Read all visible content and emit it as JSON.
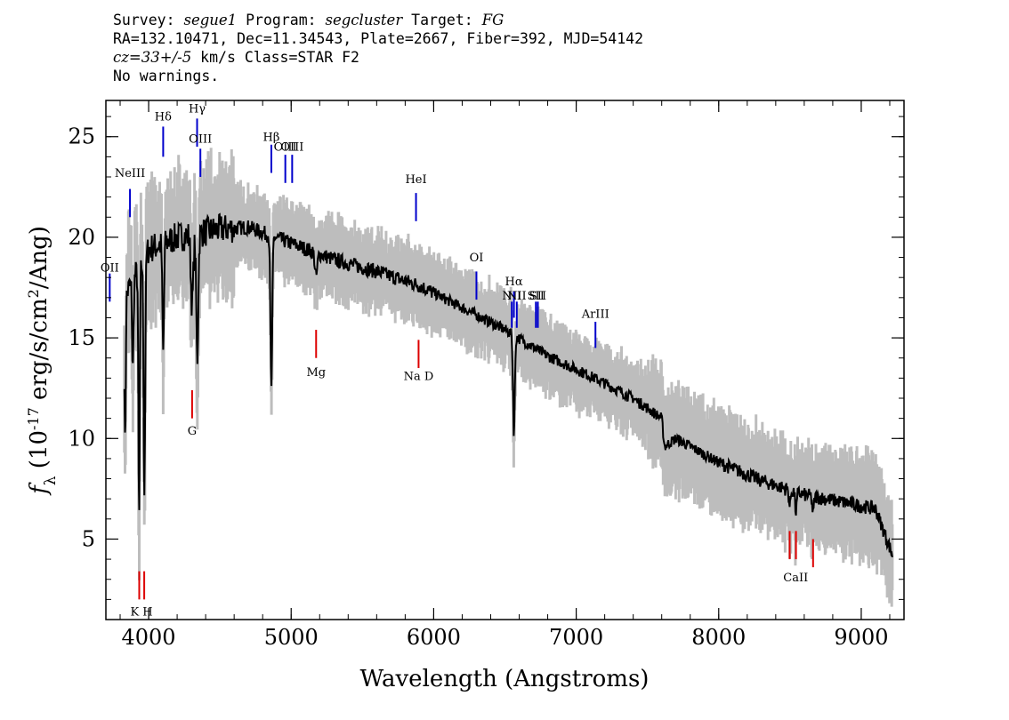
{
  "header": {
    "survey_label": "Survey: ",
    "survey": "segue1",
    "program_label": " Program: ",
    "program": "segcluster",
    "target_label": " Target: ",
    "target": "FG",
    "line2": "RA=132.10471, Dec=11.34543, Plate=2667, Fiber=392, MJD=54142",
    "cz": "cz=33+/-5",
    "line3_rest": " km/s Class=STAR F2",
    "line4": "No warnings."
  },
  "chart_data": {
    "type": "line",
    "xlabel": "Wavelength (Angstroms)",
    "ylabel": "f_λ (10^-17 erg/s/cm^2/Ang)",
    "xlim": [
      3700,
      9300
    ],
    "ylim": [
      1,
      26.8
    ],
    "x_ticks": [
      4000,
      5000,
      6000,
      7000,
      8000,
      9000
    ],
    "y_ticks": [
      5,
      10,
      15,
      20,
      25
    ],
    "colors": {
      "flux": "#000000",
      "error_band": "#bdbdbd",
      "emission": "#0000cc",
      "absorption": "#dd0000"
    },
    "continuum_knots": [
      [
        3830,
        17.0
      ],
      [
        4000,
        19.4
      ],
      [
        4200,
        20.0
      ],
      [
        4500,
        20.4
      ],
      [
        4700,
        20.5
      ],
      [
        5000,
        19.7
      ],
      [
        5300,
        18.9
      ],
      [
        5600,
        18.3
      ],
      [
        5900,
        17.6
      ],
      [
        6200,
        16.5
      ],
      [
        6500,
        15.4
      ],
      [
        6800,
        14.1
      ],
      [
        7100,
        13.1
      ],
      [
        7400,
        12.0
      ],
      [
        7600,
        11.0
      ],
      [
        7620,
        9.6
      ],
      [
        7700,
        10.0
      ],
      [
        8000,
        8.8
      ],
      [
        8300,
        7.9
      ],
      [
        8600,
        7.2
      ],
      [
        8900,
        6.8
      ],
      [
        9100,
        6.5
      ],
      [
        9220,
        4.2
      ]
    ],
    "absorption_features": [
      {
        "center": 3835,
        "depth": 7.6,
        "width": 6
      },
      {
        "center": 3889,
        "depth": 4.5,
        "width": 7
      },
      {
        "center": 3933,
        "depth": 12.5,
        "width": 7
      },
      {
        "center": 3970,
        "depth": 11.5,
        "width": 8
      },
      {
        "center": 4102,
        "depth": 5.5,
        "width": 8
      },
      {
        "center": 4305,
        "depth": 3.5,
        "width": 12
      },
      {
        "center": 4341,
        "depth": 6.2,
        "width": 10
      },
      {
        "center": 4861,
        "depth": 7.5,
        "width": 9
      },
      {
        "center": 5175,
        "depth": 1.2,
        "width": 12
      },
      {
        "center": 6563,
        "depth": 4.8,
        "width": 9
      },
      {
        "center": 8498,
        "depth": 0.8,
        "width": 8
      },
      {
        "center": 8542,
        "depth": 1.0,
        "width": 8
      },
      {
        "center": 8662,
        "depth": 0.9,
        "width": 8
      }
    ],
    "emission_lines": [
      {
        "label": "OII",
        "wave": 3727,
        "y0": 16.8,
        "y1": 18.2,
        "label_y": 18.3
      },
      {
        "label": "NeIII",
        "wave": 3869,
        "y0": 21.0,
        "y1": 22.4,
        "label_y": 23.0
      },
      {
        "label": "Hδ",
        "wave": 4102,
        "y0": 24.0,
        "y1": 25.5,
        "label_y": 25.8
      },
      {
        "label": "Hγ",
        "wave": 4340,
        "y0": 24.5,
        "y1": 25.9,
        "label_y": 26.2
      },
      {
        "label": "OIII",
        "wave": 4363,
        "y0": 23.0,
        "y1": 24.4,
        "label_y": 24.7
      },
      {
        "label": "Hβ",
        "wave": 4861,
        "y0": 23.2,
        "y1": 24.6,
        "label_y": 24.8
      },
      {
        "label": "OIII",
        "wave": 4959,
        "y0": 22.7,
        "y1": 24.1,
        "label_y": 24.3
      },
      {
        "label": "OIII",
        "wave": 5007,
        "y0": 22.7,
        "y1": 24.1,
        "label_y": 24.3
      },
      {
        "label": "HeI",
        "wave": 5876,
        "y0": 20.8,
        "y1": 22.2,
        "label_y": 22.7
      },
      {
        "label": "OI",
        "wave": 6300,
        "y0": 16.9,
        "y1": 18.3,
        "label_y": 18.8
      },
      {
        "label": "NII",
        "wave": 6548,
        "y0": 15.5,
        "y1": 16.8,
        "label_y": 16.9
      },
      {
        "label": "Hα",
        "wave": 6563,
        "y0": 16.0,
        "y1": 17.3,
        "label_y": 17.6
      },
      {
        "label": "NII",
        "wave": 6583,
        "y0": 15.5,
        "y1": 16.8,
        "label_y": 16.9
      },
      {
        "label": "SII",
        "wave": 6717,
        "y0": 15.5,
        "y1": 16.8,
        "label_y": 16.9
      },
      {
        "label": "SII",
        "wave": 6731,
        "y0": 15.5,
        "y1": 16.8,
        "label_y": 16.9
      },
      {
        "label": "ArIII",
        "wave": 7135,
        "y0": 14.5,
        "y1": 15.8,
        "label_y": 16.0
      }
    ],
    "absorption_lines": [
      {
        "label": "K",
        "wave": 3934,
        "y0": 2.0,
        "y1": 3.4,
        "label_y": 1.2
      },
      {
        "label": "H",
        "wave": 3969,
        "y0": 2.0,
        "y1": 3.4,
        "label_y": 1.2
      },
      {
        "label": "G",
        "wave": 4305,
        "y0": 11.0,
        "y1": 12.4,
        "label_y": 10.2
      },
      {
        "label": "Mg",
        "wave": 5175,
        "y0": 14.0,
        "y1": 15.4,
        "label_y": 13.1
      },
      {
        "label": "Na",
        "wave": 5894,
        "y0": 13.5,
        "y1": 14.9,
        "label_y": 12.9
      },
      {
        "label": "CaII",
        "wave": 8498,
        "y0": 4.0,
        "y1": 5.4,
        "label_y": 2.9
      },
      {
        "label": "",
        "wave": 8542,
        "y0": 4.0,
        "y1": 5.4,
        "label_y": 2.9
      },
      {
        "label": "",
        "wave": 8662,
        "y0": 3.6,
        "y1": 5.0,
        "label_y": 2.9
      }
    ],
    "absorption_label_text": [
      {
        "text": "K H",
        "wave": 3950,
        "label_y": 1.2
      },
      {
        "text": "G",
        "wave": 4305,
        "label_y": 10.2
      },
      {
        "text": "Mg",
        "wave": 5175,
        "label_y": 13.1
      },
      {
        "text": "Na D",
        "wave": 5894,
        "label_y": 12.9
      },
      {
        "text": "CaII",
        "wave": 8540,
        "label_y": 2.9
      }
    ]
  }
}
